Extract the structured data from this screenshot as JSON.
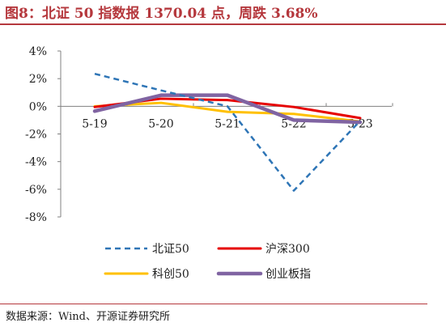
{
  "title": "图8：北证 50 指数报 1370.04 点，周跌 3.68%",
  "source": "数据来源：Wind、开源证券研究所",
  "chart_data": {
    "type": "line",
    "categories": [
      "5-19",
      "5-20",
      "5-21",
      "5-22",
      "5-23"
    ],
    "ylim": [
      -8,
      4
    ],
    "yticks": [
      4,
      2,
      0,
      -2,
      -4,
      -6,
      -8
    ],
    "ytick_labels": [
      "4%",
      "2%",
      "0%",
      "-2%",
      "-4%",
      "-6%",
      "-8%"
    ],
    "grid": false,
    "legend_position": "bottom",
    "series": [
      {
        "name": "北证50",
        "values": [
          2.35,
          1.15,
          0.0,
          -6.1,
          -1.05
        ],
        "color": "#2e75b6",
        "style": "dashed"
      },
      {
        "name": "沪深300",
        "values": [
          -0.05,
          0.55,
          0.45,
          -0.05,
          -0.85
        ],
        "color": "#e60000",
        "style": "solid"
      },
      {
        "name": "科创50",
        "values": [
          0.0,
          0.25,
          -0.4,
          -0.55,
          -1.1
        ],
        "color": "#ffc000",
        "style": "solid"
      },
      {
        "name": "创业板指",
        "values": [
          -0.35,
          0.8,
          0.8,
          -1.0,
          -1.15
        ],
        "color": "#8064a2",
        "style": "solid"
      }
    ]
  }
}
